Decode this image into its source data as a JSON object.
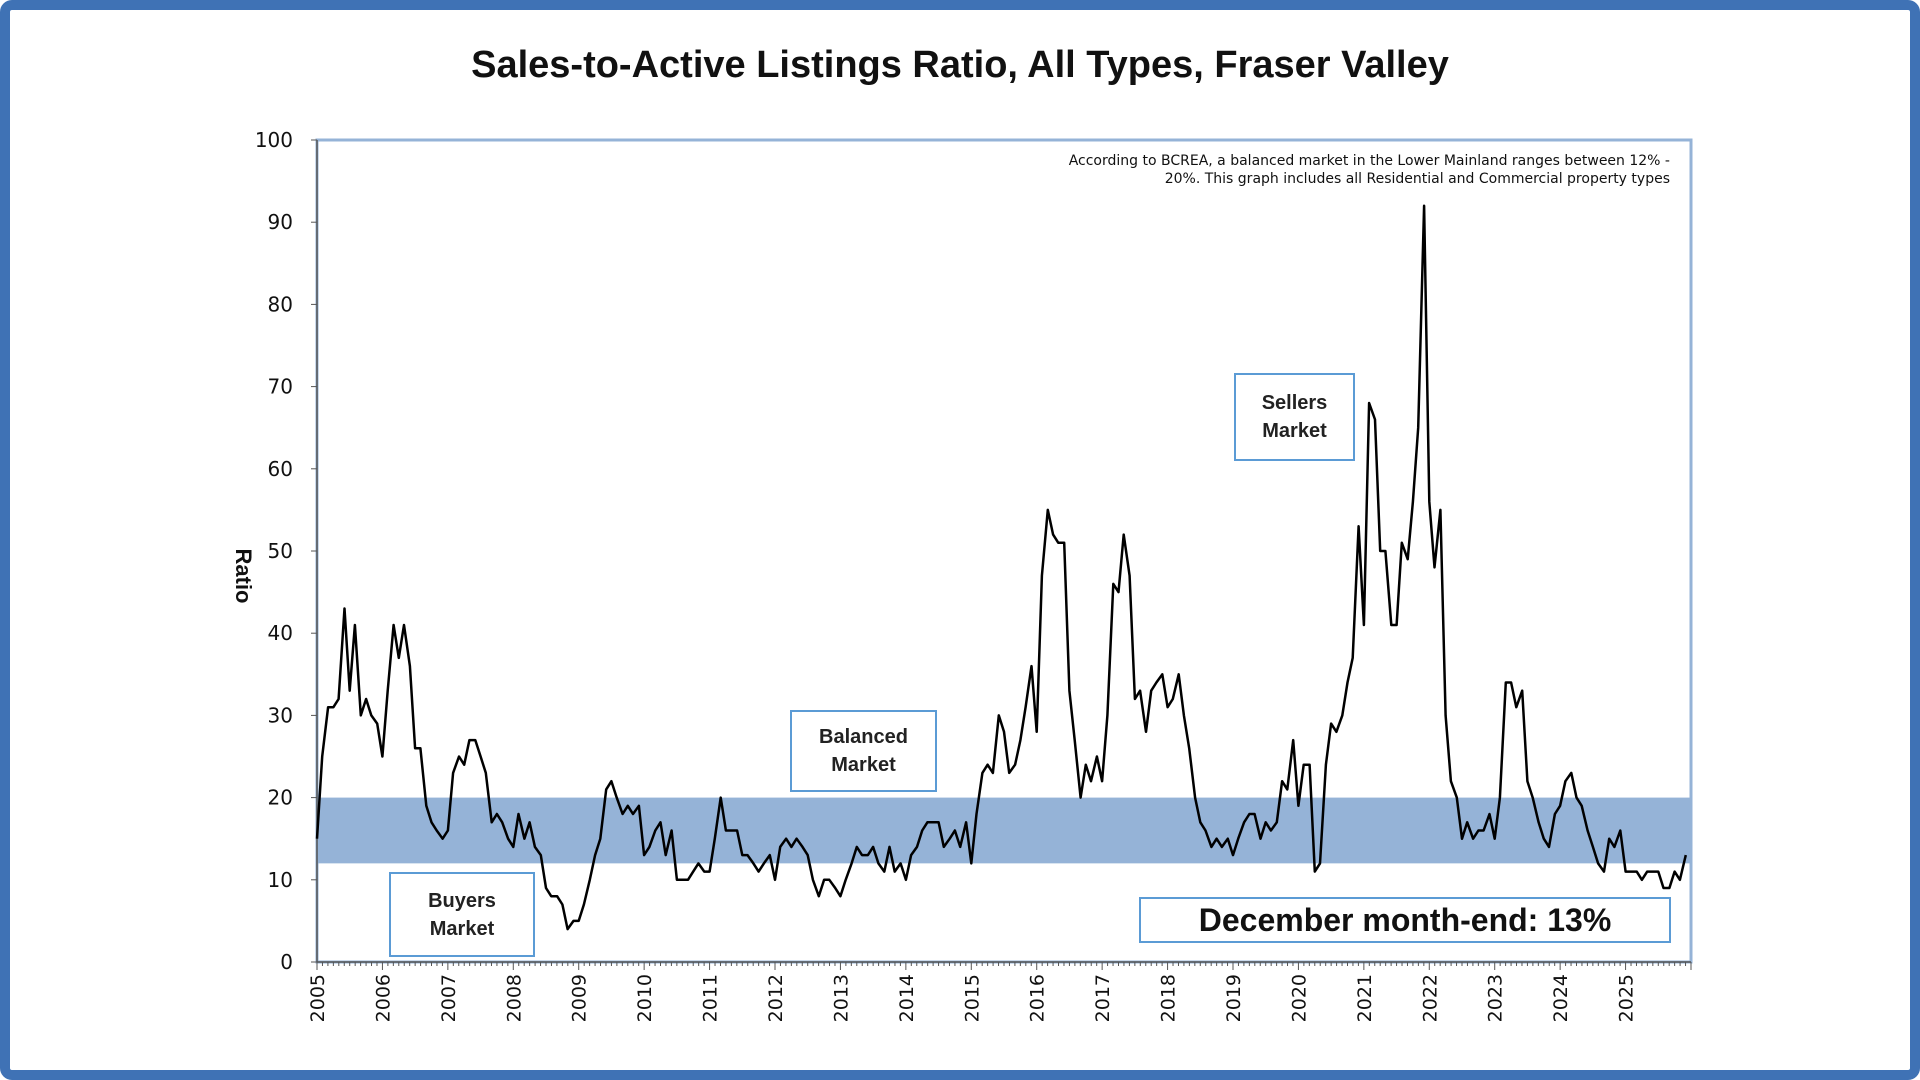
{
  "title": "Sales-to-Active Listings Ratio, All Types, Fraser Valley",
  "note": {
    "line1": "According to BCREA, a balanced market in the Lower Mainland ranges between 12% -",
    "line2": "20%. This graph includes all Residential and Commercial property types"
  },
  "labels": {
    "sellers": [
      "Sellers",
      "Market"
    ],
    "balanced": [
      "Balanced",
      "Market"
    ],
    "buyers": [
      "Buyers",
      "Market"
    ],
    "december": "December month-end: 13%"
  },
  "colors": {
    "frame": "#3f72b5",
    "band": "#95b3d7",
    "line": "#000000",
    "box_border": "#5b9bd5"
  },
  "chart_data": {
    "type": "line",
    "title": "Sales-to-Active Listings Ratio, All Types, Fraser Valley",
    "xlabel": "",
    "ylabel": "Ratio",
    "ylim": [
      0,
      100
    ],
    "yticks": [
      0,
      10,
      20,
      30,
      40,
      50,
      60,
      70,
      80,
      90,
      100
    ],
    "xlim": [
      2005,
      2026
    ],
    "xticks": [
      "2005",
      "2006",
      "2007",
      "2008",
      "2009",
      "2010",
      "2011",
      "2012",
      "2013",
      "2014",
      "2015",
      "2016",
      "2017",
      "2018",
      "2019",
      "2020",
      "2021",
      "2022",
      "2023",
      "2024",
      "2025"
    ],
    "balanced_band": [
      12,
      20
    ],
    "series": [
      {
        "name": "Sales-to-Active Listings Ratio",
        "points": [
          [
            2005.0,
            15
          ],
          [
            2005.08,
            25
          ],
          [
            2005.17,
            31
          ],
          [
            2005.25,
            31
          ],
          [
            2005.33,
            32
          ],
          [
            2005.42,
            43
          ],
          [
            2005.5,
            33
          ],
          [
            2005.58,
            41
          ],
          [
            2005.67,
            30
          ],
          [
            2005.75,
            32
          ],
          [
            2005.83,
            30
          ],
          [
            2005.92,
            29
          ],
          [
            2006.0,
            25
          ],
          [
            2006.08,
            33
          ],
          [
            2006.17,
            41
          ],
          [
            2006.25,
            37
          ],
          [
            2006.33,
            41
          ],
          [
            2006.42,
            36
          ],
          [
            2006.5,
            26
          ],
          [
            2006.58,
            26
          ],
          [
            2006.67,
            19
          ],
          [
            2006.75,
            17
          ],
          [
            2006.83,
            16
          ],
          [
            2006.92,
            15
          ],
          [
            2007.0,
            16
          ],
          [
            2007.08,
            23
          ],
          [
            2007.17,
            25
          ],
          [
            2007.25,
            24
          ],
          [
            2007.33,
            27
          ],
          [
            2007.42,
            27
          ],
          [
            2007.5,
            25
          ],
          [
            2007.58,
            23
          ],
          [
            2007.67,
            17
          ],
          [
            2007.75,
            18
          ],
          [
            2007.83,
            17
          ],
          [
            2007.92,
            15
          ],
          [
            2008.0,
            14
          ],
          [
            2008.08,
            18
          ],
          [
            2008.17,
            15
          ],
          [
            2008.25,
            17
          ],
          [
            2008.33,
            14
          ],
          [
            2008.42,
            13
          ],
          [
            2008.5,
            9
          ],
          [
            2008.58,
            8
          ],
          [
            2008.67,
            8
          ],
          [
            2008.75,
            7
          ],
          [
            2008.83,
            4
          ],
          [
            2008.92,
            5
          ],
          [
            2009.0,
            5
          ],
          [
            2009.08,
            7
          ],
          [
            2009.17,
            10
          ],
          [
            2009.25,
            13
          ],
          [
            2009.33,
            15
          ],
          [
            2009.42,
            21
          ],
          [
            2009.5,
            22
          ],
          [
            2009.58,
            20
          ],
          [
            2009.67,
            18
          ],
          [
            2009.75,
            19
          ],
          [
            2009.83,
            18
          ],
          [
            2009.92,
            19
          ],
          [
            2010.0,
            13
          ],
          [
            2010.08,
            14
          ],
          [
            2010.17,
            16
          ],
          [
            2010.25,
            17
          ],
          [
            2010.33,
            13
          ],
          [
            2010.42,
            16
          ],
          [
            2010.5,
            10
          ],
          [
            2010.58,
            10
          ],
          [
            2010.67,
            10
          ],
          [
            2010.75,
            11
          ],
          [
            2010.83,
            12
          ],
          [
            2010.92,
            11
          ],
          [
            2011.0,
            11
          ],
          [
            2011.08,
            15
          ],
          [
            2011.17,
            20
          ],
          [
            2011.25,
            16
          ],
          [
            2011.33,
            16
          ],
          [
            2011.42,
            16
          ],
          [
            2011.5,
            13
          ],
          [
            2011.58,
            13
          ],
          [
            2011.67,
            12
          ],
          [
            2011.75,
            11
          ],
          [
            2011.83,
            12
          ],
          [
            2011.92,
            13
          ],
          [
            2012.0,
            10
          ],
          [
            2012.08,
            14
          ],
          [
            2012.17,
            15
          ],
          [
            2012.25,
            14
          ],
          [
            2012.33,
            15
          ],
          [
            2012.42,
            14
          ],
          [
            2012.5,
            13
          ],
          [
            2012.58,
            10
          ],
          [
            2012.67,
            8
          ],
          [
            2012.75,
            10
          ],
          [
            2012.83,
            10
          ],
          [
            2012.92,
            9
          ],
          [
            2013.0,
            8
          ],
          [
            2013.08,
            10
          ],
          [
            2013.17,
            12
          ],
          [
            2013.25,
            14
          ],
          [
            2013.33,
            13
          ],
          [
            2013.42,
            13
          ],
          [
            2013.5,
            14
          ],
          [
            2013.58,
            12
          ],
          [
            2013.67,
            11
          ],
          [
            2013.75,
            14
          ],
          [
            2013.83,
            11
          ],
          [
            2013.92,
            12
          ],
          [
            2014.0,
            10
          ],
          [
            2014.08,
            13
          ],
          [
            2014.17,
            14
          ],
          [
            2014.25,
            16
          ],
          [
            2014.33,
            17
          ],
          [
            2014.42,
            17
          ],
          [
            2014.5,
            17
          ],
          [
            2014.58,
            14
          ],
          [
            2014.67,
            15
          ],
          [
            2014.75,
            16
          ],
          [
            2014.83,
            14
          ],
          [
            2014.92,
            17
          ],
          [
            2015.0,
            12
          ],
          [
            2015.08,
            18
          ],
          [
            2015.17,
            23
          ],
          [
            2015.25,
            24
          ],
          [
            2015.33,
            23
          ],
          [
            2015.42,
            30
          ],
          [
            2015.5,
            28
          ],
          [
            2015.58,
            23
          ],
          [
            2015.67,
            24
          ],
          [
            2015.75,
            27
          ],
          [
            2015.83,
            31
          ],
          [
            2015.92,
            36
          ],
          [
            2016.0,
            28
          ],
          [
            2016.08,
            47
          ],
          [
            2016.17,
            55
          ],
          [
            2016.25,
            52
          ],
          [
            2016.33,
            51
          ],
          [
            2016.42,
            51
          ],
          [
            2016.5,
            33
          ],
          [
            2016.58,
            27
          ],
          [
            2016.67,
            20
          ],
          [
            2016.75,
            24
          ],
          [
            2016.83,
            22
          ],
          [
            2016.92,
            25
          ],
          [
            2017.0,
            22
          ],
          [
            2017.08,
            30
          ],
          [
            2017.17,
            46
          ],
          [
            2017.25,
            45
          ],
          [
            2017.33,
            52
          ],
          [
            2017.42,
            47
          ],
          [
            2017.5,
            32
          ],
          [
            2017.58,
            33
          ],
          [
            2017.67,
            28
          ],
          [
            2017.75,
            33
          ],
          [
            2017.83,
            34
          ],
          [
            2017.92,
            35
          ],
          [
            2018.0,
            31
          ],
          [
            2018.08,
            32
          ],
          [
            2018.17,
            35
          ],
          [
            2018.25,
            30
          ],
          [
            2018.33,
            26
          ],
          [
            2018.42,
            20
          ],
          [
            2018.5,
            17
          ],
          [
            2018.58,
            16
          ],
          [
            2018.67,
            14
          ],
          [
            2018.75,
            15
          ],
          [
            2018.83,
            14
          ],
          [
            2018.92,
            15
          ],
          [
            2019.0,
            13
          ],
          [
            2019.08,
            15
          ],
          [
            2019.17,
            17
          ],
          [
            2019.25,
            18
          ],
          [
            2019.33,
            18
          ],
          [
            2019.42,
            15
          ],
          [
            2019.5,
            17
          ],
          [
            2019.58,
            16
          ],
          [
            2019.67,
            17
          ],
          [
            2019.75,
            22
          ],
          [
            2019.83,
            21
          ],
          [
            2019.92,
            27
          ],
          [
            2020.0,
            19
          ],
          [
            2020.08,
            24
          ],
          [
            2020.17,
            24
          ],
          [
            2020.25,
            11
          ],
          [
            2020.33,
            12
          ],
          [
            2020.42,
            24
          ],
          [
            2020.5,
            29
          ],
          [
            2020.58,
            28
          ],
          [
            2020.67,
            30
          ],
          [
            2020.75,
            34
          ],
          [
            2020.83,
            37
          ],
          [
            2020.92,
            53
          ],
          [
            2021.0,
            41
          ],
          [
            2021.08,
            68
          ],
          [
            2021.17,
            66
          ],
          [
            2021.25,
            50
          ],
          [
            2021.33,
            50
          ],
          [
            2021.42,
            41
          ],
          [
            2021.5,
            41
          ],
          [
            2021.58,
            51
          ],
          [
            2021.67,
            49
          ],
          [
            2021.75,
            56
          ],
          [
            2021.83,
            65
          ],
          [
            2021.92,
            92
          ],
          [
            2022.0,
            56
          ],
          [
            2022.08,
            48
          ],
          [
            2022.17,
            55
          ],
          [
            2022.25,
            30
          ],
          [
            2022.33,
            22
          ],
          [
            2022.42,
            20
          ],
          [
            2022.5,
            15
          ],
          [
            2022.58,
            17
          ],
          [
            2022.67,
            15
          ],
          [
            2022.75,
            16
          ],
          [
            2022.83,
            16
          ],
          [
            2022.92,
            18
          ],
          [
            2023.0,
            15
          ],
          [
            2023.08,
            20
          ],
          [
            2023.17,
            34
          ],
          [
            2023.25,
            34
          ],
          [
            2023.33,
            31
          ],
          [
            2023.42,
            33
          ],
          [
            2023.5,
            22
          ],
          [
            2023.58,
            20
          ],
          [
            2023.67,
            17
          ],
          [
            2023.75,
            15
          ],
          [
            2023.83,
            14
          ],
          [
            2023.92,
            18
          ],
          [
            2024.0,
            19
          ],
          [
            2024.08,
            22
          ],
          [
            2024.17,
            23
          ],
          [
            2024.25,
            20
          ],
          [
            2024.33,
            19
          ],
          [
            2024.42,
            16
          ],
          [
            2024.5,
            14
          ],
          [
            2024.58,
            12
          ],
          [
            2024.67,
            11
          ],
          [
            2024.75,
            15
          ],
          [
            2024.83,
            14
          ],
          [
            2024.92,
            16
          ],
          [
            2025.0,
            11
          ],
          [
            2025.08,
            11
          ],
          [
            2025.17,
            11
          ],
          [
            2025.25,
            10
          ],
          [
            2025.33,
            11
          ],
          [
            2025.42,
            11
          ],
          [
            2025.5,
            11
          ],
          [
            2025.58,
            9
          ],
          [
            2025.67,
            9
          ],
          [
            2025.75,
            11
          ],
          [
            2025.83,
            10
          ],
          [
            2025.92,
            13
          ]
        ]
      }
    ]
  }
}
